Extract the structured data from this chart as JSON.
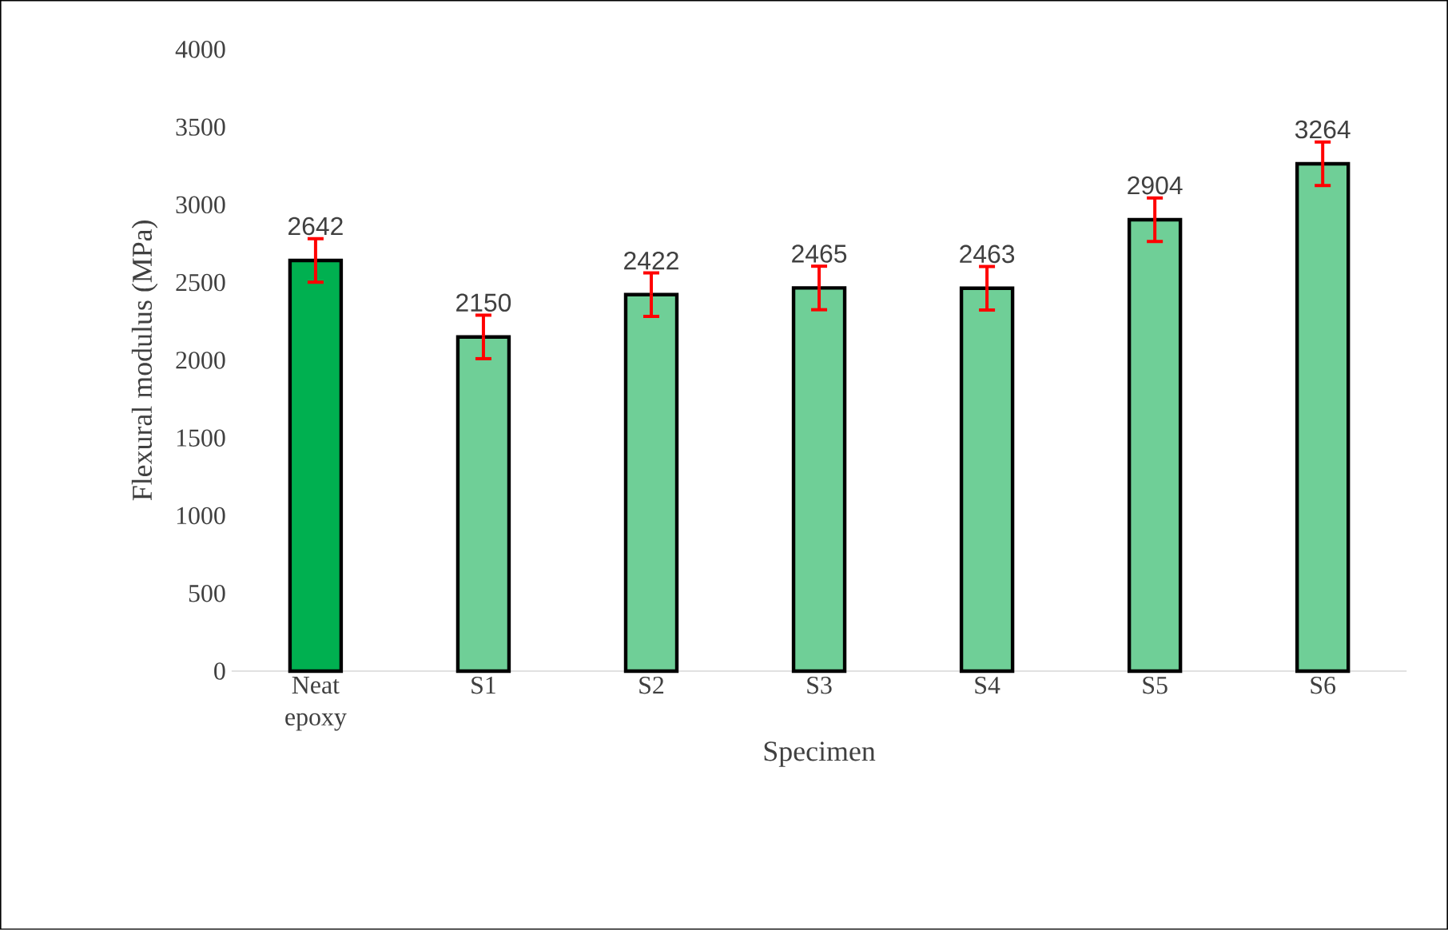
{
  "chart_data": {
    "type": "bar",
    "xlabel": "Specimen",
    "ylabel": "Flexural modulus (MPa)",
    "categories": [
      "Neat epoxy",
      "S1",
      "S2",
      "S3",
      "S4",
      "S5",
      "S6"
    ],
    "values": [
      2642,
      2150,
      2422,
      2465,
      2463,
      2904,
      3264
    ],
    "errors": [
      140,
      140,
      140,
      140,
      140,
      140,
      140
    ],
    "colors": [
      "#00b050",
      "#6fcf97",
      "#6fcf97",
      "#6fcf97",
      "#6fcf97",
      "#6fcf97",
      "#6fcf97"
    ],
    "ylim": [
      0,
      4000
    ],
    "yticks": [
      0,
      500,
      1000,
      1500,
      2000,
      2500,
      3000,
      3500,
      4000
    ],
    "data_labels": true
  }
}
